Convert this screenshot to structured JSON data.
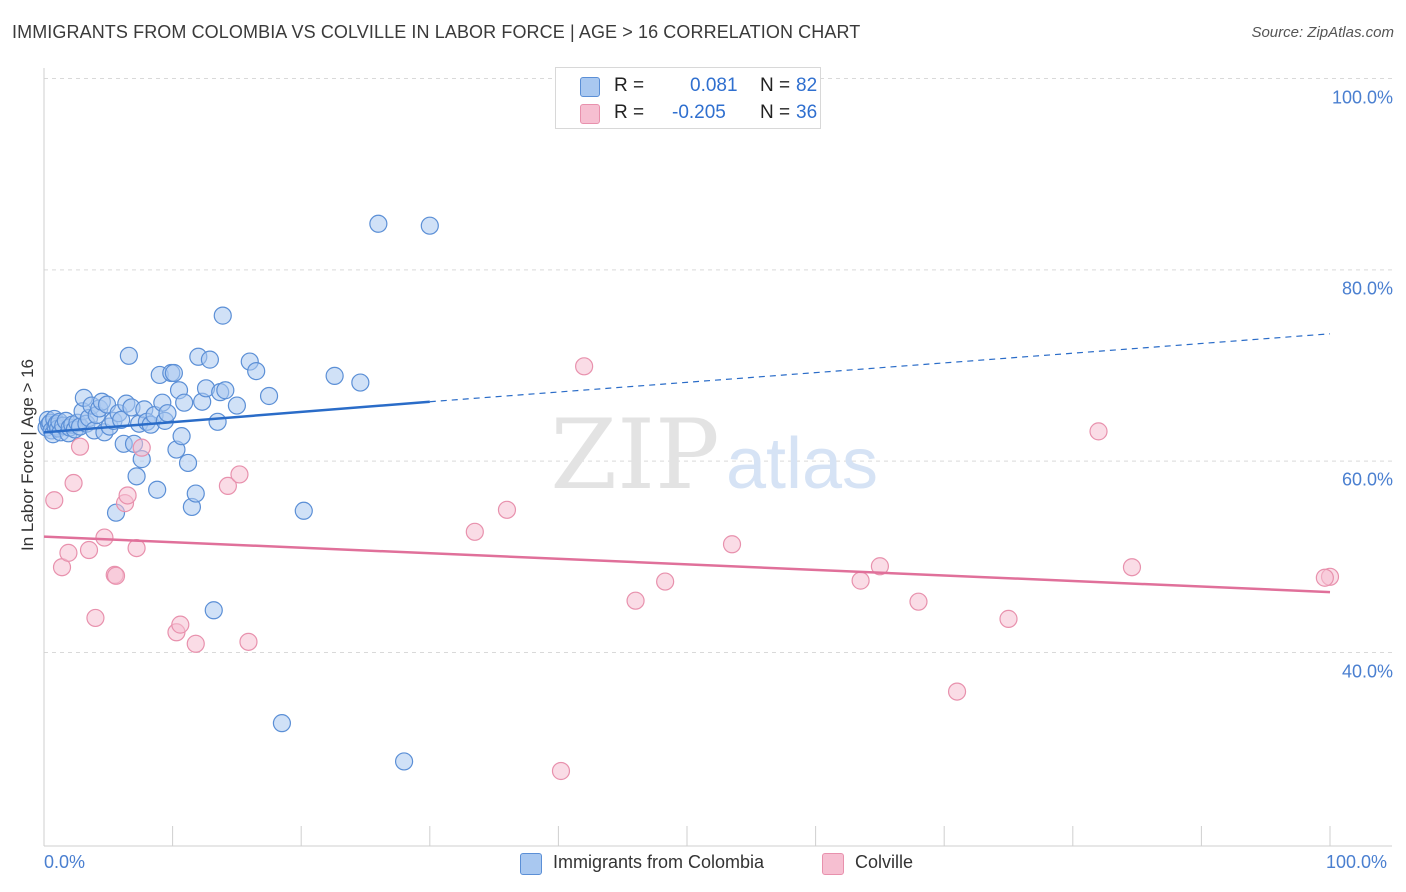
{
  "title": "IMMIGRANTS FROM COLOMBIA VS COLVILLE IN LABOR FORCE | AGE > 16 CORRELATION CHART",
  "source": "Source: ZipAtlas.com",
  "watermark": {
    "zip": "ZIP",
    "atlas": "atlas"
  },
  "legend_top": {
    "rows": [
      {
        "r_label": "R =",
        "r_value": "0.081",
        "n_label": "N =",
        "n_value": "82"
      },
      {
        "r_label": "R =",
        "r_value": "-0.205",
        "n_label": "N =",
        "n_value": "36"
      }
    ]
  },
  "colors": {
    "blue_fill": "#a9c8f0",
    "blue_stroke": "#5b8fd6",
    "blue_line": "#2a6cc8",
    "pink_fill": "#f6bfd1",
    "pink_stroke": "#e891ad",
    "pink_line": "#e0709a",
    "grid": "#d9d9d9",
    "axis_text": "#4a7fd0"
  },
  "chart_data": {
    "type": "scatter",
    "title": "IMMIGRANTS FROM COLOMBIA VS COLVILLE IN LABOR FORCE | AGE > 16 CORRELATION CHART",
    "xlabel": "",
    "ylabel": "In Labor Force | Age > 16",
    "xlim": [
      0,
      100
    ],
    "ylim": [
      20,
      102
    ],
    "x_tick_labels": [
      "0.0%",
      "100.0%"
    ],
    "y_ticks": [
      40,
      60,
      80,
      100
    ],
    "y_tick_labels": [
      "40.0%",
      "60.0%",
      "80.0%",
      "100.0%"
    ],
    "grid": true,
    "legend_position": "bottom",
    "series": [
      {
        "name": "Immigrants from Colombia",
        "r": 0.081,
        "n": 82,
        "trend": {
          "x": [
            0,
            30
          ],
          "y": [
            65.0,
            68.2
          ],
          "dashed_extension": {
            "x": [
              30,
              100
            ],
            "y": [
              68.2,
              75.3
            ]
          }
        },
        "points": [
          [
            0.2,
            65.5
          ],
          [
            0.3,
            66.3
          ],
          [
            0.4,
            65.8
          ],
          [
            0.5,
            66.0
          ],
          [
            0.6,
            65.2
          ],
          [
            0.7,
            64.8
          ],
          [
            0.8,
            66.4
          ],
          [
            0.9,
            65.6
          ],
          [
            1.0,
            65.9
          ],
          [
            1.1,
            65.4
          ],
          [
            1.2,
            66.1
          ],
          [
            1.3,
            65.0
          ],
          [
            1.5,
            65.7
          ],
          [
            1.7,
            66.2
          ],
          [
            1.9,
            64.9
          ],
          [
            2.0,
            65.5
          ],
          [
            2.2,
            65.8
          ],
          [
            2.4,
            65.3
          ],
          [
            2.6,
            66.0
          ],
          [
            2.8,
            65.6
          ],
          [
            3.0,
            67.2
          ],
          [
            3.1,
            68.6
          ],
          [
            3.3,
            65.9
          ],
          [
            3.5,
            66.5
          ],
          [
            3.7,
            67.8
          ],
          [
            3.9,
            65.2
          ],
          [
            4.1,
            66.8
          ],
          [
            4.3,
            67.5
          ],
          [
            4.5,
            68.2
          ],
          [
            4.7,
            65.0
          ],
          [
            4.9,
            67.9
          ],
          [
            5.1,
            65.6
          ],
          [
            5.4,
            66.2
          ],
          [
            5.6,
            56.6
          ],
          [
            5.8,
            67.0
          ],
          [
            6.0,
            66.3
          ],
          [
            6.2,
            63.8
          ],
          [
            6.4,
            68.0
          ],
          [
            6.6,
            73.0
          ],
          [
            6.8,
            67.6
          ],
          [
            7.0,
            63.8
          ],
          [
            7.2,
            60.4
          ],
          [
            7.4,
            65.9
          ],
          [
            7.6,
            62.2
          ],
          [
            7.8,
            67.4
          ],
          [
            8.0,
            66.1
          ],
          [
            8.3,
            65.8
          ],
          [
            8.6,
            66.8
          ],
          [
            8.8,
            59.0
          ],
          [
            9.0,
            71.0
          ],
          [
            9.2,
            68.1
          ],
          [
            9.4,
            66.2
          ],
          [
            9.6,
            67.0
          ],
          [
            9.9,
            71.2
          ],
          [
            10.1,
            71.2
          ],
          [
            10.3,
            63.2
          ],
          [
            10.5,
            69.4
          ],
          [
            10.7,
            64.6
          ],
          [
            10.9,
            68.1
          ],
          [
            11.2,
            61.8
          ],
          [
            11.5,
            57.2
          ],
          [
            11.8,
            58.6
          ],
          [
            12.0,
            72.9
          ],
          [
            12.3,
            68.2
          ],
          [
            12.6,
            69.6
          ],
          [
            12.9,
            72.6
          ],
          [
            13.2,
            46.4
          ],
          [
            13.5,
            66.1
          ],
          [
            13.7,
            69.2
          ],
          [
            13.9,
            77.2
          ],
          [
            14.1,
            69.4
          ],
          [
            15.0,
            67.8
          ],
          [
            16.0,
            72.4
          ],
          [
            16.5,
            71.4
          ],
          [
            17.5,
            68.8
          ],
          [
            18.5,
            34.6
          ],
          [
            20.2,
            56.8
          ],
          [
            22.6,
            70.9
          ],
          [
            24.6,
            70.2
          ],
          [
            26.0,
            86.8
          ],
          [
            28.0,
            30.6
          ],
          [
            30.0,
            86.6
          ]
        ]
      },
      {
        "name": "Colville",
        "r": -0.205,
        "n": 36,
        "trend": {
          "x": [
            0,
            100
          ],
          "y": [
            54.1,
            48.3
          ]
        },
        "points": [
          [
            0.8,
            57.9
          ],
          [
            1.4,
            50.9
          ],
          [
            1.9,
            52.4
          ],
          [
            2.3,
            59.7
          ],
          [
            2.8,
            63.5
          ],
          [
            3.5,
            52.7
          ],
          [
            4.0,
            45.6
          ],
          [
            4.7,
            54.0
          ],
          [
            5.5,
            50.1
          ],
          [
            5.6,
            50.0
          ],
          [
            6.3,
            57.6
          ],
          [
            6.5,
            58.4
          ],
          [
            7.2,
            52.9
          ],
          [
            7.6,
            63.4
          ],
          [
            10.3,
            44.1
          ],
          [
            10.6,
            44.9
          ],
          [
            11.8,
            42.9
          ],
          [
            14.3,
            59.4
          ],
          [
            15.2,
            60.6
          ],
          [
            15.9,
            43.1
          ],
          [
            33.5,
            54.6
          ],
          [
            36.0,
            56.9
          ],
          [
            40.2,
            29.6
          ],
          [
            42.0,
            71.9
          ],
          [
            46.0,
            47.4
          ],
          [
            48.3,
            49.4
          ],
          [
            53.5,
            53.3
          ],
          [
            63.5,
            49.5
          ],
          [
            65.0,
            51.0
          ],
          [
            68.0,
            47.3
          ],
          [
            71.0,
            37.9
          ],
          [
            75.0,
            45.5
          ],
          [
            82.0,
            65.1
          ],
          [
            84.6,
            50.9
          ],
          [
            100.0,
            49.9
          ],
          [
            99.6,
            49.8
          ]
        ]
      }
    ]
  }
}
